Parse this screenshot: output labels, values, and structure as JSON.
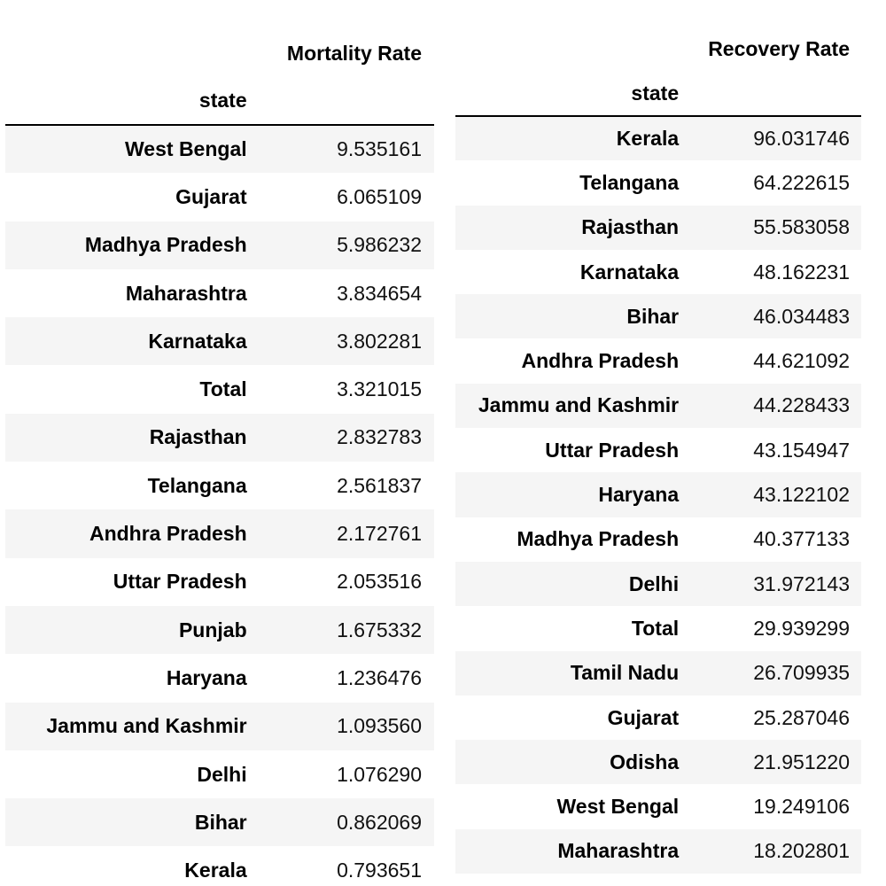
{
  "mortality_table": {
    "column_header": "Mortality Rate",
    "index_name": "state",
    "rows": [
      {
        "state": "West Bengal",
        "value": "9.535161"
      },
      {
        "state": "Gujarat",
        "value": "6.065109"
      },
      {
        "state": "Madhya Pradesh",
        "value": "5.986232"
      },
      {
        "state": "Maharashtra",
        "value": "3.834654"
      },
      {
        "state": "Karnataka",
        "value": "3.802281"
      },
      {
        "state": "Total",
        "value": "3.321015"
      },
      {
        "state": "Rajasthan",
        "value": "2.832783"
      },
      {
        "state": "Telangana",
        "value": "2.561837"
      },
      {
        "state": "Andhra Pradesh",
        "value": "2.172761"
      },
      {
        "state": "Uttar Pradesh",
        "value": "2.053516"
      },
      {
        "state": "Punjab",
        "value": "1.675332"
      },
      {
        "state": "Haryana",
        "value": "1.236476"
      },
      {
        "state": "Jammu and Kashmir",
        "value": "1.093560"
      },
      {
        "state": "Delhi",
        "value": "1.076290"
      },
      {
        "state": "Bihar",
        "value": "0.862069"
      },
      {
        "state": "Kerala",
        "value": "0.793651"
      }
    ]
  },
  "recovery_table": {
    "column_header": "Recovery Rate",
    "index_name": "state",
    "rows": [
      {
        "state": "Kerala",
        "value": "96.031746"
      },
      {
        "state": "Telangana",
        "value": "64.222615"
      },
      {
        "state": "Rajasthan",
        "value": "55.583058"
      },
      {
        "state": "Karnataka",
        "value": "48.162231"
      },
      {
        "state": "Bihar",
        "value": "46.034483"
      },
      {
        "state": "Andhra Pradesh",
        "value": "44.621092"
      },
      {
        "state": "Jammu and Kashmir",
        "value": "44.228433"
      },
      {
        "state": "Uttar Pradesh",
        "value": "43.154947"
      },
      {
        "state": "Haryana",
        "value": "43.122102"
      },
      {
        "state": "Madhya Pradesh",
        "value": "40.377133"
      },
      {
        "state": "Delhi",
        "value": "31.972143"
      },
      {
        "state": "Total",
        "value": "29.939299"
      },
      {
        "state": "Tamil Nadu",
        "value": "26.709935"
      },
      {
        "state": "Gujarat",
        "value": "25.287046"
      },
      {
        "state": "Odisha",
        "value": "21.951220"
      },
      {
        "state": "West Bengal",
        "value": "19.249106"
      },
      {
        "state": "Maharashtra",
        "value": "18.202801"
      }
    ]
  },
  "colors": {
    "striped_row": "#f5f5f5",
    "plain_row": "#ffffff",
    "header_rule": "#000000",
    "text": "#000000"
  }
}
